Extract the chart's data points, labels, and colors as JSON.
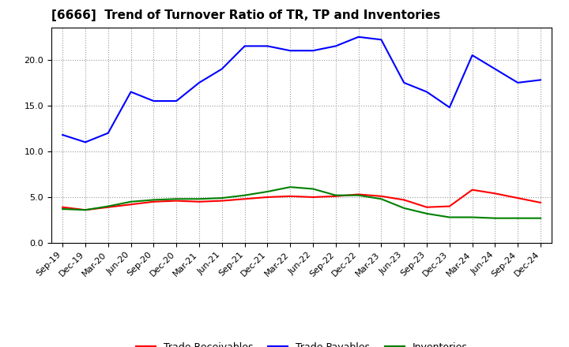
{
  "title": "[6666]  Trend of Turnover Ratio of TR, TP and Inventories",
  "x_labels": [
    "Sep-19",
    "Dec-19",
    "Mar-20",
    "Jun-20",
    "Sep-20",
    "Dec-20",
    "Mar-21",
    "Jun-21",
    "Sep-21",
    "Dec-21",
    "Mar-22",
    "Jun-22",
    "Sep-22",
    "Dec-22",
    "Mar-23",
    "Jun-23",
    "Sep-23",
    "Dec-23",
    "Mar-24",
    "Jun-24",
    "Sep-24",
    "Dec-24"
  ],
  "trade_receivables": [
    3.9,
    3.6,
    3.9,
    4.2,
    4.5,
    4.6,
    4.5,
    4.6,
    4.8,
    5.0,
    5.1,
    5.0,
    5.1,
    5.3,
    5.1,
    4.7,
    3.9,
    4.0,
    5.8,
    5.4,
    4.9,
    4.4
  ],
  "trade_payables": [
    11.8,
    11.0,
    12.0,
    16.5,
    15.5,
    15.5,
    17.5,
    19.0,
    21.5,
    21.5,
    21.0,
    21.0,
    21.5,
    22.5,
    22.2,
    17.5,
    16.5,
    14.8,
    20.5,
    19.0,
    17.5,
    17.8
  ],
  "inventories": [
    3.7,
    3.6,
    4.0,
    4.5,
    4.7,
    4.8,
    4.8,
    4.9,
    5.2,
    5.6,
    6.1,
    5.9,
    5.2,
    5.2,
    4.8,
    3.8,
    3.2,
    2.8,
    2.8,
    2.7,
    2.7,
    2.7
  ],
  "ylim": [
    0,
    23.5
  ],
  "yticks": [
    0.0,
    5.0,
    10.0,
    15.0,
    20.0
  ],
  "color_tr": "#ff0000",
  "color_tp": "#0000ff",
  "color_inv": "#008000",
  "bg_color": "#ffffff",
  "grid_color": "#999999",
  "linewidth": 1.5,
  "title_fontsize": 11,
  "tick_fontsize": 8,
  "legend_fontsize": 9
}
